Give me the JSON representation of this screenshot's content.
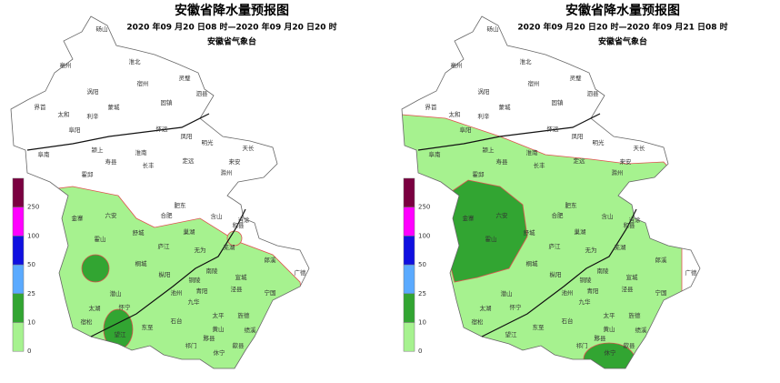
{
  "maps": [
    {
      "title": "安徽省降水量预报图",
      "subtitle": "2020 年09 月20 日08 时—2020 年09 月20 日20 时",
      "agency": "安徽省气象台"
    },
    {
      "title": "安徽省降水量预报图",
      "subtitle": "2020 年09 月20 日20 时—2020 年09 月21 日08 时",
      "agency": "安徽省气象台"
    }
  ],
  "legend": {
    "labels": [
      "250",
      "100",
      "50",
      "25",
      "10",
      "0"
    ],
    "colors": [
      "#7a0040",
      "#ff00ff",
      "#1010e0",
      "#5aaaff",
      "#32a532",
      "#a6f28f"
    ]
  },
  "cities": [
    "砀山",
    "亳州",
    "淮北",
    "涡阳",
    "宿州",
    "灵璧",
    "泗县",
    "界首",
    "太和",
    "利辛",
    "蒙城",
    "固镇",
    "阜南",
    "阜阳",
    "怀远",
    "凤阳",
    "明光",
    "天长",
    "颍上",
    "淮南",
    "长丰",
    "寿县",
    "定远",
    "滁州",
    "来安",
    "霍邱",
    "金寨",
    "六安",
    "霍山",
    "舒城",
    "合肥",
    "肥东",
    "含山",
    "和县",
    "巢湖",
    "庐江",
    "无为",
    "芜湖",
    "当涂",
    "桐城",
    "枞阳",
    "潜山",
    "太湖",
    "怀宁",
    "宿松",
    "望江",
    "东至",
    "池州",
    "铜陵",
    "南陵",
    "宣城",
    "郎溪",
    "广德",
    "宁国",
    "泾县",
    "旌德",
    "绩溪",
    "青阳",
    "九华",
    "石台",
    "太平",
    "黄山",
    "歙县",
    "祁门",
    "黟县",
    "休宁"
  ]
}
